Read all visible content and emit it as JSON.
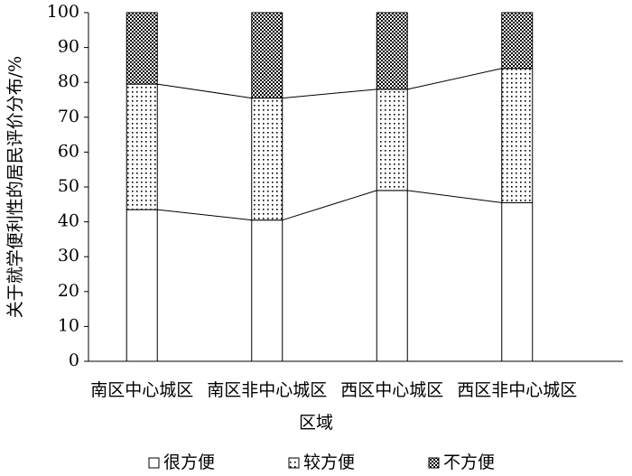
{
  "chart_data": {
    "type": "stacked_bar",
    "x_label": "区域",
    "y_label": "关于就学便利性的居民评价分布/%",
    "categories": [
      "南区中心城区",
      "南区非中心城区",
      "西区中心城区",
      "西区非中心城区"
    ],
    "series": [
      {
        "name": "很方便",
        "color": "#000000",
        "pattern": "none",
        "values": [
          43.5,
          40.5,
          49,
          45.5
        ]
      },
      {
        "name": "较方便",
        "color": "#000000",
        "pattern": "dots",
        "values": [
          36,
          35,
          29,
          38.5
        ]
      },
      {
        "name": "不方便",
        "color": "#000000",
        "pattern": "checker",
        "values": [
          20.5,
          24.5,
          22,
          16
        ]
      }
    ],
    "ylim": [
      0,
      100
    ],
    "yticks": [
      0,
      10,
      20,
      30,
      40,
      50,
      60,
      70,
      80,
      90,
      100
    ],
    "connect_lines": true
  }
}
